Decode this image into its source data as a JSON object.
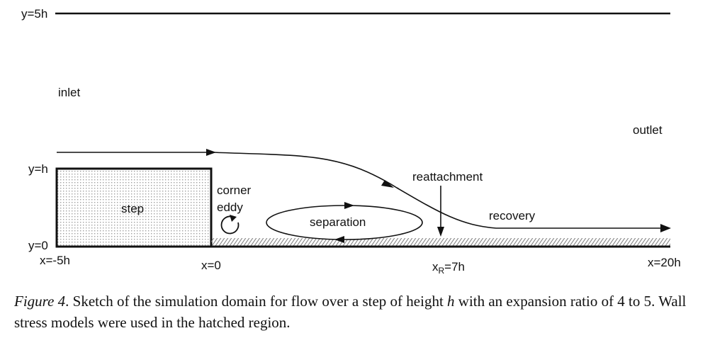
{
  "labels": {
    "y_top": "y=5h",
    "y_h": "y=h",
    "y_0": "y=0",
    "inlet": "inlet",
    "outlet": "outlet",
    "step": "step",
    "corner": "corner",
    "eddy": "eddy",
    "separation": "separation",
    "reattachment": "reattachment",
    "recovery": "recovery",
    "x_minus5": "x=-5h",
    "x_0": "x=0",
    "x_R_prefix": "x",
    "x_R_sub": "R",
    "x_R_suffix": "=7h",
    "x_20": "x=20h"
  },
  "caption": {
    "fig_label": "Figure 4",
    "text_1": ".  Sketch of the simulation domain for flow over a step of height ",
    "h": "h",
    "text_2": " with an expansion ratio of 4 to 5. Wall stress models were used in the hatched region."
  }
}
